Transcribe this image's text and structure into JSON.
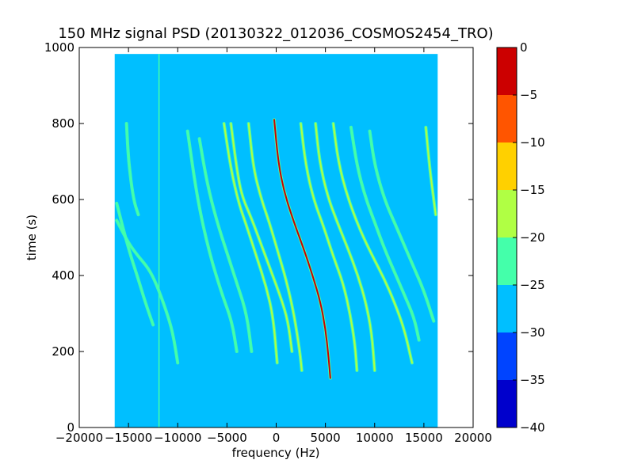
{
  "chart_data": {
    "type": "heatmap",
    "title": "150 MHz signal PSD (20130322_012036_COSMOS2454_TRO)",
    "xlabel": "frequency (Hz)",
    "ylabel": "time (s)",
    "xlim": [
      -20000,
      20000
    ],
    "ylim": [
      0,
      1000
    ],
    "x_ticks": [
      -20000,
      -15000,
      -10000,
      -5000,
      0,
      5000,
      10000,
      15000,
      20000
    ],
    "x_tick_labels": [
      "−20000",
      "−15000",
      "−10000",
      "−5000",
      "0",
      "5000",
      "10000",
      "15000",
      "20000"
    ],
    "y_ticks": [
      0,
      200,
      400,
      600,
      800,
      1000
    ],
    "y_tick_labels": [
      "0",
      "200",
      "400",
      "600",
      "800",
      "1000"
    ],
    "data_extent": {
      "x": [
        -16400,
        16400
      ],
      "y": [
        0,
        983
      ]
    },
    "background_level": -27.5,
    "colorbar": {
      "levels": [
        -40,
        -35,
        -30,
        -25,
        -20,
        -15,
        -10,
        -5,
        0
      ],
      "tick_labels": [
        "−40",
        "−35",
        "−30",
        "−25",
        "−20",
        "−15",
        "−10",
        "−5",
        "0"
      ],
      "colors": [
        "#0000cc",
        "#0044ff",
        "#00bfff",
        "#44ffaa",
        "#b0ff44",
        "#ffd000",
        "#ff5500",
        "#cc0000"
      ]
    },
    "vertical_lines": [
      {
        "x": -11900,
        "y0": 0,
        "y1": 983,
        "level": -22
      }
    ],
    "traces": [
      {
        "freq_at_t": [
          [
            -16200,
            590
          ],
          [
            -15000,
            470
          ],
          [
            -14000,
            390
          ],
          [
            -13300,
            330
          ],
          [
            -12500,
            270
          ]
        ],
        "level": -22
      },
      {
        "freq_at_t": [
          [
            -16200,
            545
          ],
          [
            -15000,
            485
          ],
          [
            -14000,
            450
          ],
          [
            -13000,
            420
          ],
          [
            -12200,
            380
          ],
          [
            -11200,
            310
          ],
          [
            -10500,
            250
          ],
          [
            -10000,
            170
          ]
        ],
        "level": -22
      },
      {
        "freq_at_t": [
          [
            -15200,
            800
          ],
          [
            -15000,
            700
          ],
          [
            -14500,
            600
          ],
          [
            -14000,
            560
          ]
        ],
        "level": -22
      },
      {
        "freq_at_t": [
          [
            -9000,
            780
          ],
          [
            -8000,
            600
          ],
          [
            -6800,
            460
          ],
          [
            -5500,
            350
          ],
          [
            -4500,
            280
          ],
          [
            -4000,
            200
          ]
        ],
        "level": -22
      },
      {
        "freq_at_t": [
          [
            -7800,
            760
          ],
          [
            -7000,
            640
          ],
          [
            -6000,
            540
          ],
          [
            -5000,
            460
          ],
          [
            -4000,
            380
          ],
          [
            -3000,
            300
          ],
          [
            -2500,
            200
          ]
        ],
        "level": -22
      },
      {
        "freq_at_t": [
          [
            -5300,
            800
          ],
          [
            -4600,
            680
          ],
          [
            -3800,
            590
          ],
          [
            -3000,
            530
          ],
          [
            -2000,
            450
          ],
          [
            -1000,
            370
          ],
          [
            -300,
            290
          ],
          [
            100,
            170
          ]
        ],
        "level": -20
      },
      {
        "freq_at_t": [
          [
            -4600,
            800
          ],
          [
            -4000,
            680
          ],
          [
            -3500,
            610
          ],
          [
            -2500,
            550
          ],
          [
            -1500,
            480
          ],
          [
            -500,
            410
          ],
          [
            500,
            340
          ],
          [
            1200,
            280
          ],
          [
            1600,
            200
          ]
        ],
        "level": -18
      },
      {
        "freq_at_t": [
          [
            -2800,
            800
          ],
          [
            -2300,
            680
          ],
          [
            -1500,
            600
          ],
          [
            -700,
            540
          ],
          [
            200,
            460
          ],
          [
            1000,
            390
          ],
          [
            1800,
            300
          ],
          [
            2400,
            200
          ],
          [
            2600,
            150
          ]
        ],
        "level": -18
      },
      {
        "freq_at_t": [
          [
            -200,
            810
          ],
          [
            200,
            700
          ],
          [
            800,
            620
          ],
          [
            1800,
            540
          ],
          [
            2800,
            470
          ],
          [
            3700,
            400
          ],
          [
            4500,
            330
          ],
          [
            5000,
            260
          ],
          [
            5300,
            190
          ],
          [
            5500,
            130
          ]
        ],
        "level": -5
      },
      {
        "freq_at_t": [
          [
            2500,
            800
          ],
          [
            3000,
            690
          ],
          [
            3800,
            600
          ],
          [
            4800,
            530
          ],
          [
            5800,
            450
          ],
          [
            6800,
            380
          ],
          [
            7500,
            300
          ],
          [
            8000,
            220
          ],
          [
            8200,
            150
          ]
        ],
        "level": -18
      },
      {
        "freq_at_t": [
          [
            4000,
            800
          ],
          [
            4400,
            700
          ],
          [
            5200,
            610
          ],
          [
            6200,
            540
          ],
          [
            7300,
            470
          ],
          [
            8300,
            400
          ],
          [
            9100,
            330
          ],
          [
            9700,
            250
          ],
          [
            10000,
            150
          ]
        ],
        "level": -20
      },
      {
        "freq_at_t": [
          [
            5800,
            800
          ],
          [
            6300,
            700
          ],
          [
            7200,
            610
          ],
          [
            8500,
            520
          ],
          [
            9800,
            450
          ],
          [
            11000,
            390
          ],
          [
            12000,
            330
          ],
          [
            13000,
            260
          ],
          [
            13800,
            170
          ]
        ],
        "level": -20
      },
      {
        "freq_at_t": [
          [
            7600,
            790
          ],
          [
            8200,
            690
          ],
          [
            9000,
            610
          ],
          [
            10000,
            540
          ],
          [
            11000,
            470
          ],
          [
            12000,
            410
          ],
          [
            13000,
            350
          ],
          [
            14000,
            290
          ],
          [
            14500,
            230
          ]
        ],
        "level": -22
      },
      {
        "freq_at_t": [
          [
            9500,
            780
          ],
          [
            10000,
            690
          ],
          [
            11000,
            600
          ],
          [
            12000,
            540
          ],
          [
            13000,
            480
          ],
          [
            14000,
            420
          ],
          [
            15000,
            360
          ],
          [
            16000,
            280
          ]
        ],
        "level": -22
      },
      {
        "freq_at_t": [
          [
            15200,
            790
          ],
          [
            15600,
            680
          ],
          [
            16000,
            600
          ],
          [
            16200,
            560
          ]
        ],
        "level": -20
      }
    ]
  }
}
